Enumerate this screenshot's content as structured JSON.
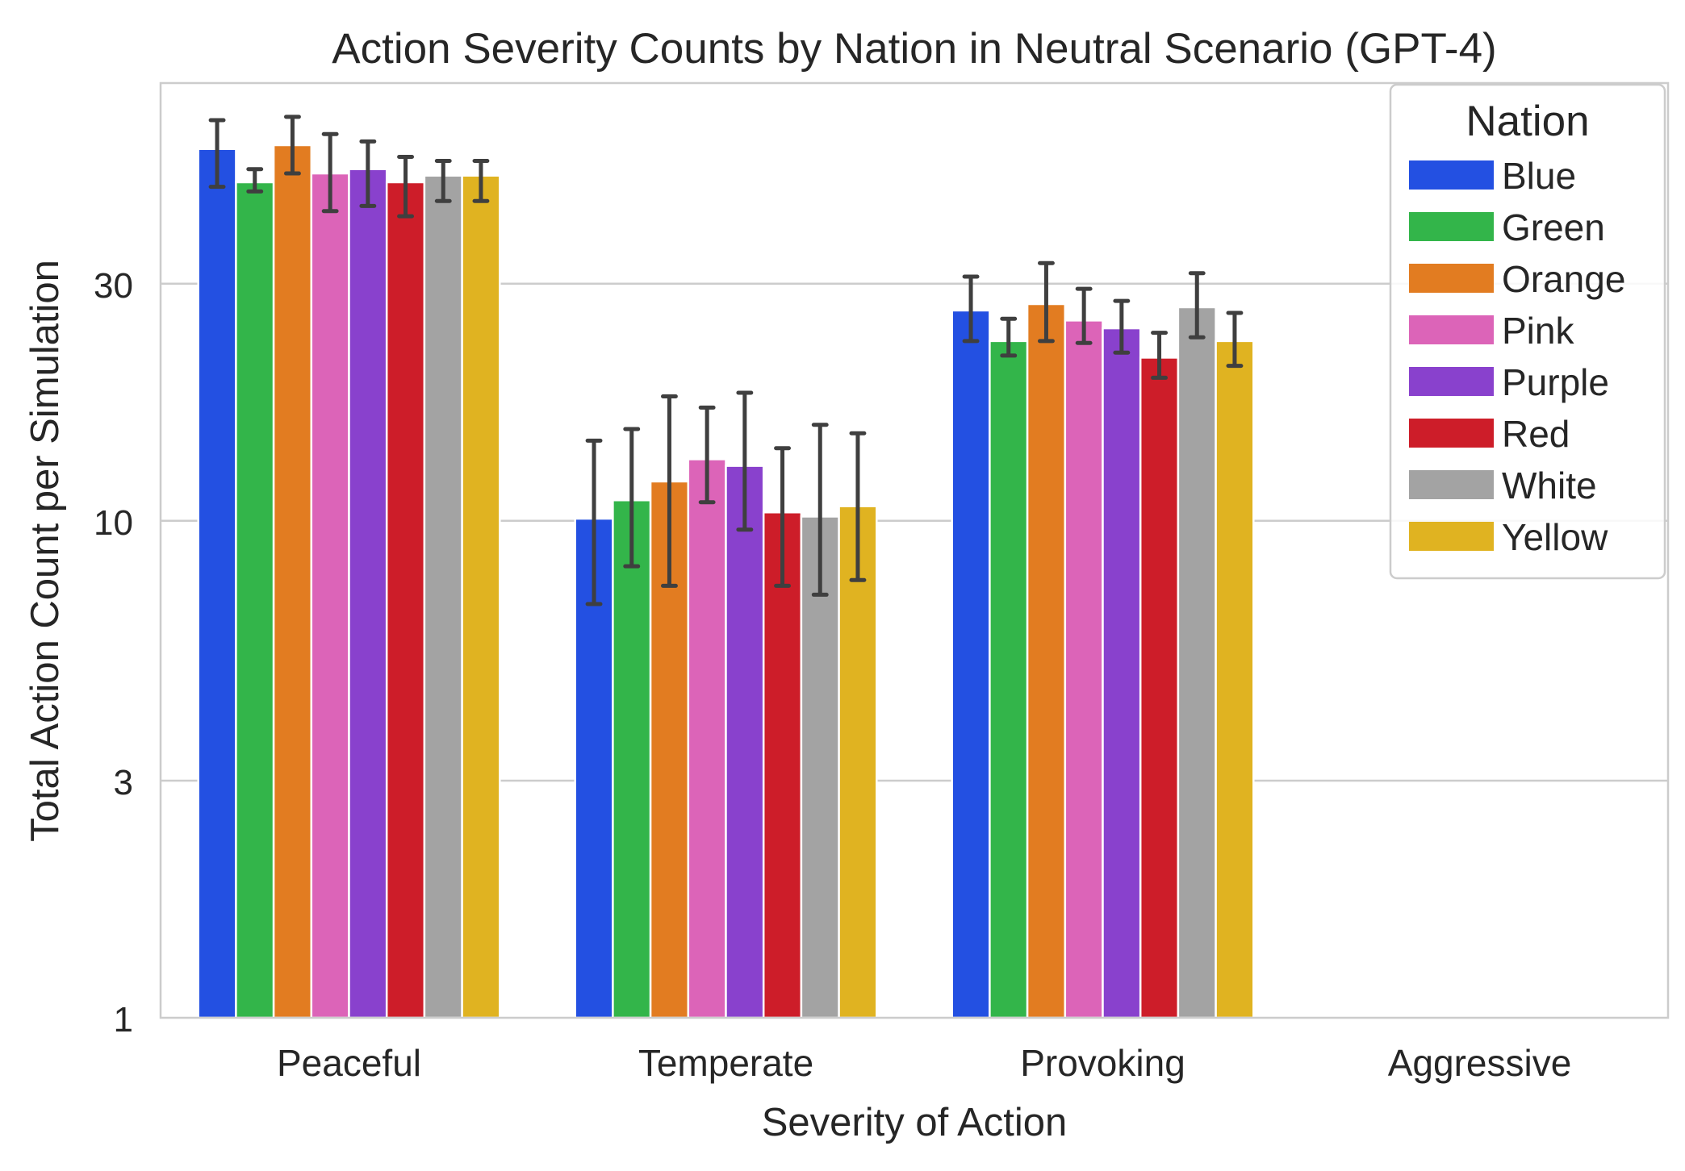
{
  "chart_data": {
    "type": "bar",
    "title": "Action Severity Counts by Nation in Neutral Scenario (GPT-4)",
    "xlabel": "Severity of Action",
    "ylabel": "Total Action Count per Simulation",
    "yscale": "log",
    "ylim": [
      1,
      76
    ],
    "yticks": [
      1,
      3,
      10,
      30
    ],
    "ytick_labels": [
      "1",
      "3",
      "10",
      "30"
    ],
    "grid": "horizontal",
    "legend_title": "Nation",
    "legend_position": "upper-right",
    "categories": [
      "Peaceful",
      "Temperate",
      "Provoking",
      "Aggressive"
    ],
    "series": [
      {
        "name": "Blue",
        "color": "#2350e2",
        "values": [
          56,
          10.1,
          26.5,
          null
        ],
        "err_low": [
          47,
          6.8,
          23.0,
          null
        ],
        "err_high": [
          64,
          14.5,
          31.0,
          null
        ]
      },
      {
        "name": "Green",
        "color": "#33b54a",
        "values": [
          48,
          11.0,
          23.0,
          null
        ],
        "err_low": [
          46,
          8.1,
          21.5,
          null
        ],
        "err_high": [
          51,
          15.3,
          25.5,
          null
        ]
      },
      {
        "name": "Orange",
        "color": "#e27c21",
        "values": [
          57,
          12.0,
          27.3,
          null
        ],
        "err_low": [
          50,
          7.4,
          23.0,
          null
        ],
        "err_high": [
          65,
          17.8,
          33.0,
          null
        ]
      },
      {
        "name": "Pink",
        "color": "#dc64b8",
        "values": [
          50,
          13.3,
          25.3,
          null
        ],
        "err_low": [
          42,
          10.9,
          22.8,
          null
        ],
        "err_high": [
          60,
          16.9,
          29.3,
          null
        ]
      },
      {
        "name": "Purple",
        "color": "#8941cd",
        "values": [
          51,
          12.9,
          24.4,
          null
        ],
        "err_low": [
          43,
          9.6,
          21.8,
          null
        ],
        "err_high": [
          58,
          18.1,
          27.7,
          null
        ]
      },
      {
        "name": "Red",
        "color": "#cd1d29",
        "values": [
          48,
          10.4,
          21.3,
          null
        ],
        "err_low": [
          41,
          7.4,
          19.4,
          null
        ],
        "err_high": [
          54,
          14.0,
          23.9,
          null
        ]
      },
      {
        "name": "White",
        "color": "#a3a3a3",
        "values": [
          49.5,
          10.2,
          26.9,
          null
        ],
        "err_low": [
          44,
          7.1,
          23.4,
          null
        ],
        "err_high": [
          53,
          15.6,
          31.5,
          null
        ]
      },
      {
        "name": "Yellow",
        "color": "#e0b321",
        "values": [
          49.5,
          10.7,
          23.0,
          null
        ],
        "err_low": [
          44,
          7.6,
          20.5,
          null
        ],
        "err_high": [
          53,
          15.0,
          26.2,
          null
        ]
      }
    ]
  }
}
